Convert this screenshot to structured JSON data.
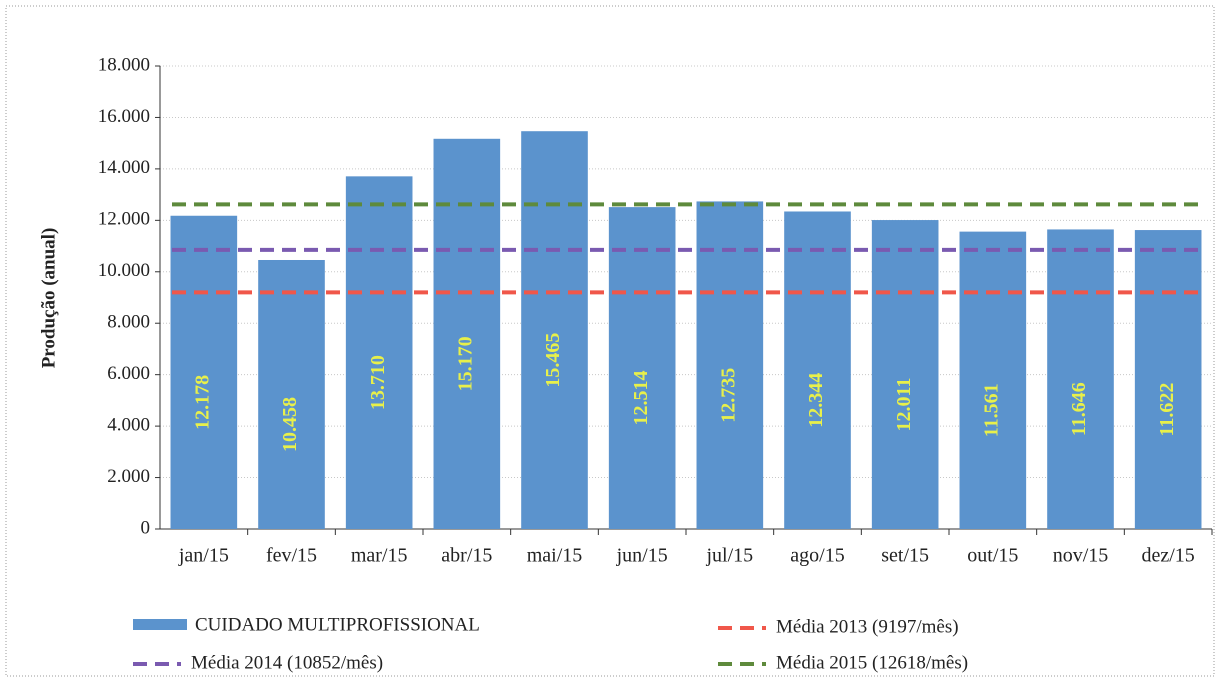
{
  "chart_data": {
    "type": "bar",
    "y_label": "Produção (anual)",
    "categories": [
      "jan/15",
      "fev/15",
      "mar/15",
      "abr/15",
      "mai/15",
      "jun/15",
      "jul/15",
      "ago/15",
      "set/15",
      "out/15",
      "nov/15",
      "dez/15"
    ],
    "series": [
      {
        "name": "CUIDADO MULTIPROFISSIONAL",
        "color": "#5b93cd",
        "values": [
          12178,
          10458,
          13710,
          15170,
          15465,
          12514,
          12735,
          12344,
          12011,
          11561,
          11646,
          11622
        ],
        "value_labels": [
          "12.178",
          "10.458",
          "13.710",
          "15.170",
          "15.465",
          "12.514",
          "12.735",
          "12.344",
          "12.011",
          "11.561",
          "11.646",
          "11.622"
        ]
      }
    ],
    "reference_lines": [
      {
        "name": "Média 2013 (9197/mês)",
        "value": 9197,
        "color": "#f0574a"
      },
      {
        "name": "Média 2014 (10852/mês)",
        "value": 10852,
        "color": "#7a5ab0"
      },
      {
        "name": "Média 2015 (12618/mês)",
        "value": 12618,
        "color": "#5e8a3c"
      }
    ],
    "ylim": [
      0,
      18000
    ],
    "yticks": [
      0,
      {
        "value": 2000,
        "label": "2.000"
      },
      {
        "value": 4000,
        "label": "4.000"
      },
      {
        "value": 6000,
        "label": "6.000"
      },
      {
        "value": 8000,
        "label": "8.000"
      },
      {
        "value": 10000,
        "label": "10.000"
      },
      {
        "value": 12000,
        "label": "12.000"
      },
      {
        "value": 14000,
        "label": "14.000"
      },
      {
        "value": 16000,
        "label": "16.000"
      },
      {
        "value": 18000,
        "label": "18.000"
      }
    ],
    "grid": true
  }
}
